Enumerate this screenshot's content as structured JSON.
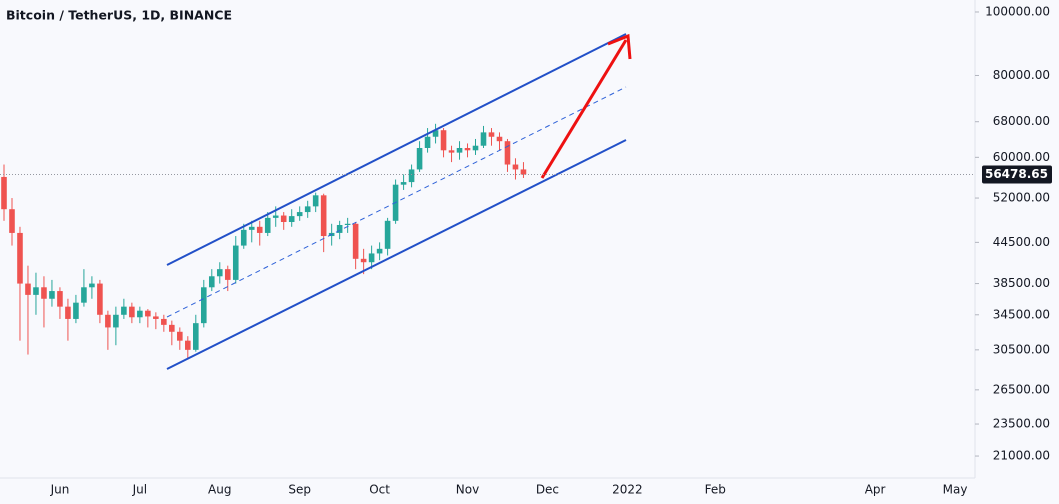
{
  "chart_data": {
    "type": "candlestick",
    "title": "Bitcoin / TetherUS, 1D, BINANCE",
    "categories": [
      null,
      null,
      null,
      null,
      null,
      null,
      null,
      "Jun",
      null,
      null,
      null,
      null,
      null,
      null,
      null,
      null,
      null,
      "Jul",
      null,
      null,
      null,
      null,
      null,
      null,
      null,
      null,
      null,
      "Aug",
      null,
      null,
      null,
      null,
      null,
      null,
      null,
      null,
      null,
      "Sep",
      null,
      null,
      null,
      null,
      null,
      null,
      null,
      null,
      null,
      "Oct",
      null,
      null,
      null,
      null,
      null,
      null,
      null,
      null,
      null,
      null,
      "Nov",
      null,
      null,
      null,
      null,
      null,
      null,
      null,
      null,
      null,
      "Dec",
      null,
      null,
      null,
      null,
      null,
      null,
      null,
      null,
      null,
      "2022",
      null,
      null,
      null,
      null,
      null,
      null,
      null,
      null,
      null,
      null,
      "Feb",
      null,
      null,
      null,
      null,
      null,
      null,
      null,
      null,
      null,
      null,
      null,
      null,
      null,
      null,
      null,
      null,
      null,
      null,
      null,
      "Apr",
      null,
      null,
      null,
      null,
      null,
      null,
      null,
      null,
      null,
      "May",
      null,
      null
    ],
    "open": [
      56000,
      50000,
      46000,
      38500,
      37000,
      38000,
      36500,
      37500,
      35500,
      34000,
      36000,
      38000,
      38500,
      34500,
      33000,
      34500,
      35500,
      34200,
      35000,
      34300,
      34000,
      33300,
      32500,
      31500,
      30500,
      33500,
      38000,
      39500,
      40500,
      39000,
      44000,
      46500,
      47000,
      46000,
      48500,
      48900,
      47800,
      48800,
      49500,
      50500,
      52500,
      45500,
      46000,
      47300,
      47500,
      42000,
      41500,
      42800,
      43500,
      48000,
      54500,
      55000,
      57500,
      62000,
      64500,
      66000,
      61500,
      61000,
      62000,
      61500,
      62500,
      65500,
      64500,
      63500,
      58500,
      57500,
      null,
      null,
      null,
      null,
      null,
      null,
      null,
      null,
      null,
      null,
      null,
      null,
      null,
      null,
      null,
      null,
      null,
      null,
      null,
      null,
      null,
      null,
      null,
      null,
      null,
      null,
      null,
      null,
      null,
      null,
      null,
      null,
      null,
      null,
      null,
      null,
      null,
      null,
      null,
      null,
      null,
      null,
      null,
      null,
      null,
      null,
      null,
      null,
      null,
      null,
      null,
      null,
      null,
      null,
      null,
      null
    ],
    "high": [
      58500,
      52000,
      47000,
      41000,
      40000,
      39500,
      39000,
      38000,
      36500,
      37000,
      40500,
      39500,
      39000,
      35000,
      35500,
      36500,
      36000,
      35500,
      35200,
      34800,
      34500,
      33800,
      33000,
      32000,
      34500,
      39000,
      40500,
      41500,
      41000,
      45500,
      47500,
      48000,
      48000,
      49500,
      50500,
      49500,
      50000,
      50500,
      51500,
      53000,
      52800,
      47500,
      48000,
      48500,
      47800,
      43500,
      44000,
      44500,
      48500,
      55500,
      56500,
      58500,
      63500,
      66500,
      67500,
      66500,
      62500,
      63500,
      63000,
      64000,
      67000,
      66500,
      65500,
      64000,
      59800,
      59000,
      null,
      null,
      null,
      null,
      null,
      null,
      null,
      null,
      null,
      null,
      null,
      null,
      null,
      null,
      null,
      null,
      null,
      null,
      null,
      null,
      null,
      null,
      null,
      null,
      null,
      null,
      null,
      null,
      null,
      null,
      null,
      null,
      null,
      null,
      null,
      null,
      null,
      null,
      null,
      null,
      null,
      null,
      null,
      null,
      null,
      null,
      null,
      null,
      null,
      null,
      null,
      null,
      null,
      null,
      null,
      null
    ],
    "low": [
      48000,
      44000,
      31500,
      30000,
      34500,
      33000,
      35500,
      34000,
      31500,
      33500,
      35500,
      36500,
      33500,
      30500,
      31000,
      34000,
      33500,
      33500,
      33000,
      32800,
      32500,
      31000,
      30500,
      29500,
      30300,
      33000,
      37500,
      38500,
      37500,
      38500,
      43500,
      44500,
      44000,
      45500,
      47000,
      46500,
      47000,
      48000,
      48500,
      49500,
      43000,
      44000,
      45000,
      46000,
      40500,
      39800,
      40500,
      41800,
      42500,
      47500,
      53500,
      54000,
      57000,
      61000,
      63000,
      60000,
      59000,
      59500,
      60000,
      60500,
      62000,
      62500,
      61500,
      57000,
      55500,
      55800,
      null,
      null,
      null,
      null,
      null,
      null,
      null,
      null,
      null,
      null,
      null,
      null,
      null,
      null,
      null,
      null,
      null,
      null,
      null,
      null,
      null,
      null,
      null,
      null,
      null,
      null,
      null,
      null,
      null,
      null,
      null,
      null,
      null,
      null,
      null,
      null,
      null,
      null,
      null,
      null,
      null,
      null,
      null,
      null,
      null,
      null,
      null,
      null,
      null,
      null,
      null,
      null,
      null,
      null,
      null,
      null
    ],
    "close": [
      50000,
      46000,
      38500,
      37000,
      38000,
      36500,
      37500,
      35500,
      34000,
      36000,
      38000,
      38500,
      34500,
      33000,
      34500,
      35500,
      34200,
      35000,
      34300,
      34000,
      33300,
      32500,
      31500,
      30500,
      33500,
      38000,
      39500,
      40500,
      39000,
      44000,
      46500,
      47000,
      46000,
      48500,
      48900,
      47800,
      48800,
      49500,
      50500,
      52500,
      45500,
      46000,
      47300,
      47500,
      42000,
      41500,
      42800,
      43500,
      48000,
      54500,
      55000,
      57500,
      62000,
      64500,
      66000,
      61500,
      61000,
      62000,
      61500,
      62500,
      65500,
      64500,
      63500,
      58500,
      57500,
      56478.65,
      null,
      null,
      null,
      null,
      null,
      null,
      null,
      null,
      null,
      null,
      null,
      null,
      null,
      null,
      null,
      null,
      null,
      null,
      null,
      null,
      null,
      null,
      null,
      null,
      null,
      null,
      null,
      null,
      null,
      null,
      null,
      null,
      null,
      null,
      null,
      null,
      null,
      null,
      null,
      null,
      null,
      null,
      null,
      null,
      null,
      null,
      null,
      null,
      null,
      null,
      null,
      null,
      null,
      null,
      null,
      null
    ],
    "ylim": [
      19440,
      104300
    ],
    "log_scale": true,
    "yticks": [
      {
        "value": 100000,
        "label": "100000.00"
      },
      {
        "value": 80000,
        "label": "80000.00"
      },
      {
        "value": 68000,
        "label": "68000.00"
      },
      {
        "value": 60000,
        "label": "60000.00"
      },
      {
        "value": 52000,
        "label": "52000.00"
      },
      {
        "value": 44500,
        "label": "44500.00"
      },
      {
        "value": 38500,
        "label": "38500.00"
      },
      {
        "value": 34500,
        "label": "34500.00"
      },
      {
        "value": 30500,
        "label": "30500.00"
      },
      {
        "value": 26500,
        "label": "26500.00"
      },
      {
        "value": 23500,
        "label": "23500.00"
      },
      {
        "value": 21000,
        "label": "21000.00"
      }
    ],
    "up_color": "#26a69a",
    "down_color": "#ef5350"
  }
}
